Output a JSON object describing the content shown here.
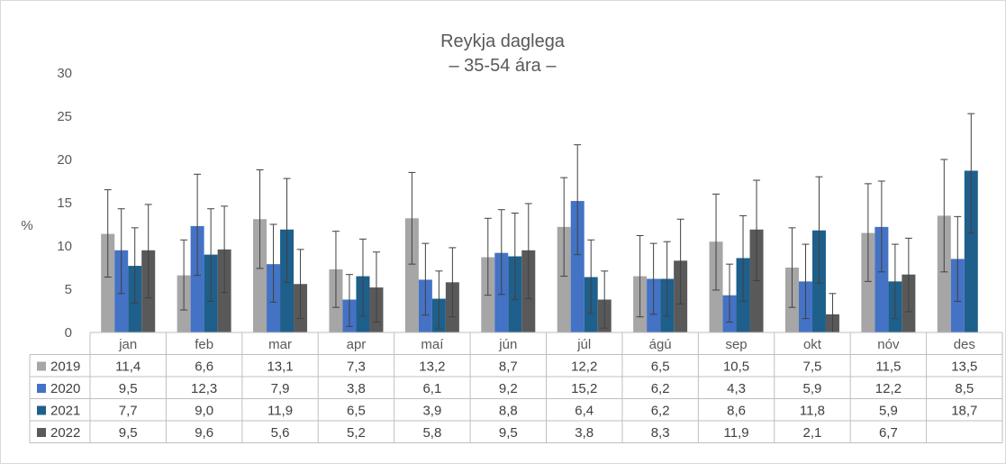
{
  "chart_data": {
    "type": "bar",
    "title": "Reykja daglega",
    "subtitle": "– 35-54 ára –",
    "ylabel": "%",
    "ylim": [
      0,
      30
    ],
    "yticks": [
      0,
      5,
      10,
      15,
      20,
      25,
      30
    ],
    "grid": false,
    "legend": "data-table",
    "categories": [
      "jan",
      "feb",
      "mar",
      "apr",
      "maí",
      "jún",
      "júl",
      "ágú",
      "sep",
      "okt",
      "nóv",
      "des"
    ],
    "series": [
      {
        "name": "2019",
        "color": "#a6a6a6",
        "values": [
          11.4,
          6.6,
          13.1,
          7.3,
          13.2,
          8.7,
          12.2,
          6.5,
          10.5,
          7.5,
          11.5,
          13.5
        ],
        "labels": [
          "11,4",
          "6,6",
          "13,1",
          "7,3",
          "13,2",
          "8,7",
          "12,2",
          "6,5",
          "10,5",
          "7,5",
          "11,5",
          "13,5"
        ],
        "err_low": [
          6.4,
          2.6,
          7.4,
          2.9,
          7.9,
          4.3,
          6.5,
          1.8,
          4.9,
          2.9,
          5.9,
          7.0
        ],
        "err_high": [
          16.5,
          10.7,
          18.8,
          11.7,
          18.5,
          13.2,
          17.9,
          11.2,
          16.0,
          12.1,
          17.2,
          20.0
        ]
      },
      {
        "name": "2020",
        "color": "#4472c4",
        "values": [
          9.5,
          12.3,
          7.9,
          3.8,
          6.1,
          9.2,
          15.2,
          6.2,
          4.3,
          5.9,
          12.2,
          8.5
        ],
        "labels": [
          "9,5",
          "12,3",
          "7,9",
          "3,8",
          "6,1",
          "9,2",
          "15,2",
          "6,2",
          "4,3",
          "5,9",
          "12,2",
          "8,5"
        ],
        "err_low": [
          4.5,
          6.6,
          3.5,
          0.7,
          2.0,
          4.4,
          9.0,
          2.1,
          1.2,
          1.6,
          7.0,
          3.6
        ],
        "err_high": [
          14.3,
          18.3,
          12.5,
          6.7,
          10.3,
          14.2,
          21.7,
          10.3,
          7.9,
          10.2,
          17.5,
          13.4
        ]
      },
      {
        "name": "2021",
        "color": "#1f5f8b",
        "values": [
          7.7,
          9.0,
          11.9,
          6.5,
          3.9,
          8.8,
          6.4,
          6.2,
          8.6,
          11.8,
          5.9,
          18.7
        ],
        "labels": [
          "7,7",
          "9,0",
          "11,9",
          "6,5",
          "3,9",
          "8,8",
          "6,4",
          "6,2",
          "8,6",
          "11,8",
          "5,9",
          "18,7"
        ],
        "err_low": [
          3.4,
          3.6,
          5.8,
          1.9,
          0.5,
          3.8,
          2.2,
          1.9,
          3.6,
          5.7,
          1.6,
          11.5
        ],
        "err_high": [
          12.1,
          14.3,
          17.8,
          10.8,
          7.1,
          13.8,
          10.7,
          10.5,
          13.5,
          18.0,
          10.2,
          25.3
        ]
      },
      {
        "name": "2022",
        "color": "#595959",
        "values": [
          9.5,
          9.6,
          5.6,
          5.2,
          5.8,
          9.5,
          3.8,
          8.3,
          11.9,
          2.1,
          6.7,
          null
        ],
        "labels": [
          "9,5",
          "9,6",
          "5,6",
          "5,2",
          "5,8",
          "9,5",
          "3,8",
          "8,3",
          "11,9",
          "2,1",
          "6,7",
          ""
        ],
        "err_low": [
          4.0,
          4.6,
          1.6,
          1.2,
          1.8,
          3.9,
          0.5,
          3.3,
          6.0,
          0.0,
          2.4,
          null
        ],
        "err_high": [
          14.8,
          14.6,
          9.6,
          9.3,
          9.8,
          14.9,
          7.1,
          13.1,
          17.6,
          4.5,
          10.9,
          null
        ]
      }
    ]
  }
}
